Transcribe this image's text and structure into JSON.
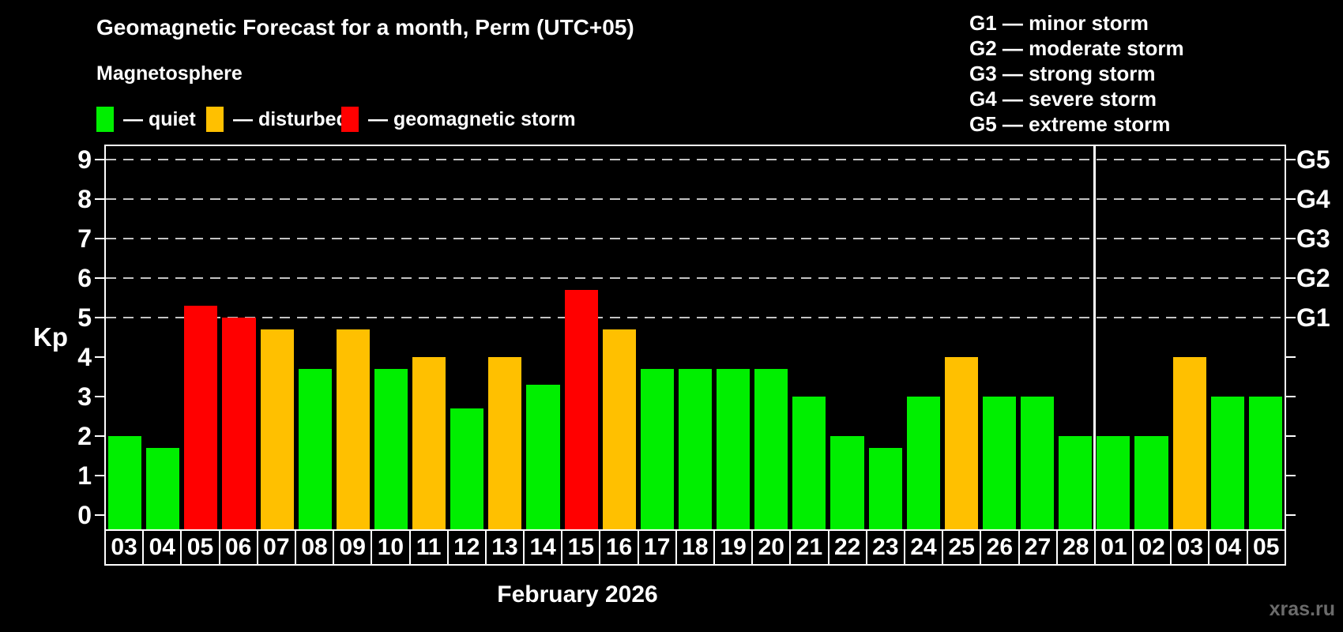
{
  "header": {
    "title": "Geomagnetic Forecast for a month, Perm (UTC+05)",
    "subtitle": "Magnetosphere"
  },
  "legend": {
    "items": [
      {
        "label": "— quiet",
        "status": "quiet"
      },
      {
        "label": "— disturbed",
        "status": "disturbed"
      },
      {
        "label": "— geomagnetic storm",
        "status": "storm"
      }
    ]
  },
  "g_legend": {
    "items": [
      "G1 — minor storm",
      "G2 — moderate storm",
      "G3 — strong storm",
      "G4 — severe storm",
      "G5 — extreme storm"
    ]
  },
  "status_colors": {
    "quiet": "#00ef00",
    "disturbed": "#ffc000",
    "storm": "#ff0000"
  },
  "axis": {
    "kp_label": "Kp"
  },
  "footer": {
    "month_label": "February 2026",
    "watermark": "xras.ru"
  },
  "chart_data": {
    "type": "bar",
    "title": "Geomagnetic Forecast for a month, Perm (UTC+05)",
    "ylabel": "Kp",
    "xlabel": "February 2026",
    "ylim": [
      0,
      9.4
    ],
    "yticks": [
      0,
      1,
      2,
      3,
      4,
      5,
      6,
      7,
      8,
      9
    ],
    "grid_levels": [
      5,
      6,
      7,
      8,
      9
    ],
    "grid": "dashed horizontal lines at Kp 5-9 only",
    "legend_position": "top-left",
    "right_axis_labels": [
      {
        "level": 5,
        "label": "G1"
      },
      {
        "level": 6,
        "label": "G2"
      },
      {
        "level": 7,
        "label": "G3"
      },
      {
        "level": 8,
        "label": "G4"
      },
      {
        "level": 9,
        "label": "G5"
      }
    ],
    "month_separator_after_index": 25,
    "categories": [
      "03",
      "04",
      "05",
      "06",
      "07",
      "08",
      "09",
      "10",
      "11",
      "12",
      "13",
      "14",
      "15",
      "16",
      "17",
      "18",
      "19",
      "20",
      "21",
      "22",
      "23",
      "24",
      "25",
      "26",
      "27",
      "28",
      "01",
      "02",
      "03",
      "04",
      "05"
    ],
    "series": [
      {
        "name": "Kp forecast",
        "values": [
          2,
          1.7,
          5.3,
          5,
          4.7,
          3.7,
          4.7,
          3.7,
          4,
          2.7,
          4,
          3.3,
          5.7,
          4.7,
          3.7,
          3.7,
          3.7,
          3.7,
          3,
          2,
          1.7,
          3,
          4,
          3,
          3,
          2,
          2,
          2,
          4,
          3,
          3
        ],
        "statuses": [
          "quiet",
          "quiet",
          "storm",
          "storm",
          "disturbed",
          "quiet",
          "disturbed",
          "quiet",
          "disturbed",
          "quiet",
          "disturbed",
          "quiet",
          "storm",
          "disturbed",
          "quiet",
          "quiet",
          "quiet",
          "quiet",
          "quiet",
          "quiet",
          "quiet",
          "quiet",
          "disturbed",
          "quiet",
          "quiet",
          "quiet",
          "quiet",
          "quiet",
          "disturbed",
          "quiet",
          "quiet"
        ]
      }
    ]
  }
}
